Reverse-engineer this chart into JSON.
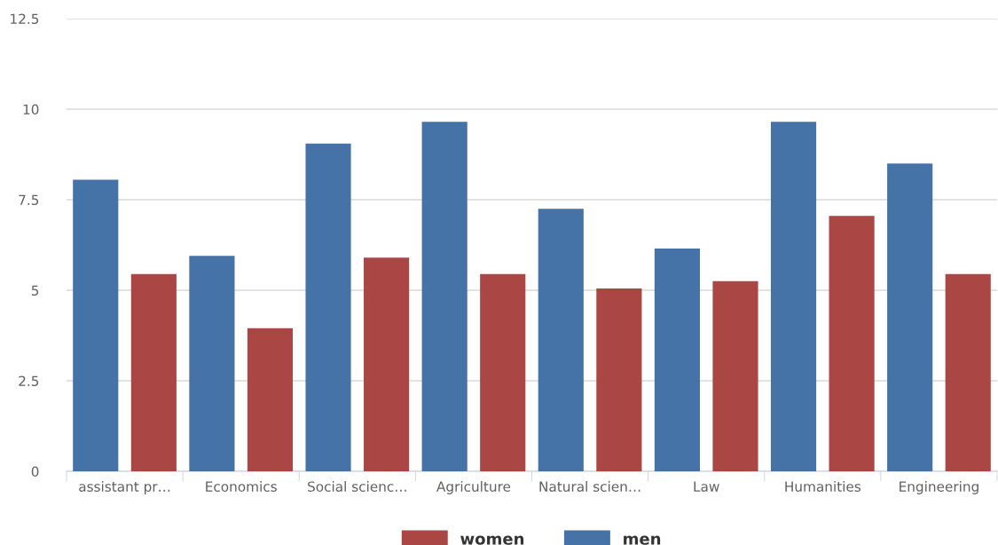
{
  "chart_data": {
    "type": "bar",
    "categories": [
      "assistant pr…",
      "Economics",
      "Social scienc…",
      "Agriculture",
      "Natural scien…",
      "Law",
      "Humanities",
      "Engineering"
    ],
    "series": [
      {
        "name": "men",
        "color": "#4572a7",
        "values": [
          8.05,
          5.95,
          9.05,
          9.65,
          7.25,
          6.15,
          9.65,
          8.5
        ]
      },
      {
        "name": "women",
        "color": "#aa4643",
        "values": [
          5.45,
          3.95,
          5.9,
          5.45,
          5.05,
          5.25,
          7.05,
          5.45
        ]
      }
    ],
    "ylim": [
      0,
      12.5
    ],
    "yticks": [
      0,
      2.5,
      5,
      7.5,
      10,
      12.5
    ],
    "grid": "y",
    "legend": "bottom"
  }
}
